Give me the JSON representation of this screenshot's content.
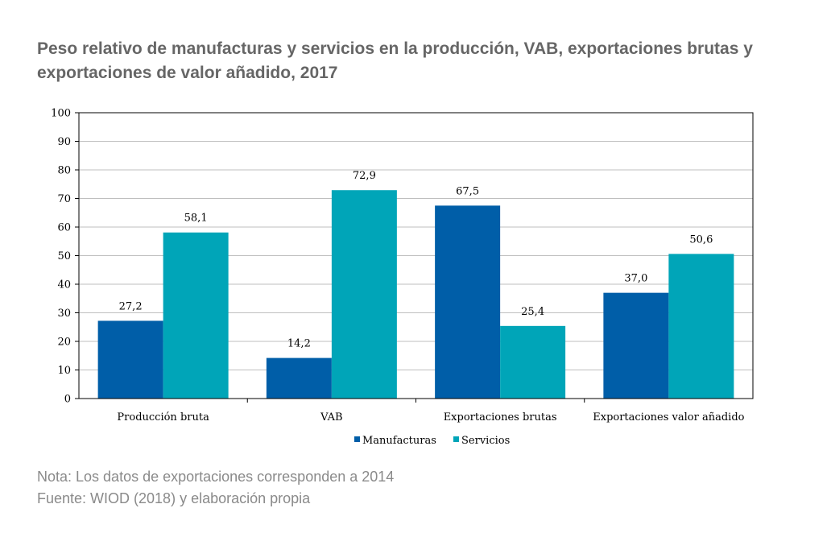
{
  "chart_data": {
    "type": "bar",
    "title": "Peso relativo de manufacturas y servicios en la producción, VAB, exportaciones brutas y exportaciones de valor añadido, 2017",
    "categories": [
      "Producción bruta",
      "VAB",
      "Exportaciones brutas",
      "Exportaciones valor añadido"
    ],
    "series": [
      {
        "name": "Manufacturas",
        "values": [
          27.2,
          14.2,
          67.5,
          37.0
        ],
        "labels": [
          "27,2",
          "14,2",
          "67,5",
          "37,0"
        ],
        "color": "#005ea8"
      },
      {
        "name": "Servicios",
        "values": [
          58.1,
          72.9,
          25.4,
          50.6
        ],
        "labels": [
          "58,1",
          "72,9",
          "25,4",
          "50,6"
        ],
        "color": "#00a5b8"
      }
    ],
    "ylim": [
      0,
      100
    ],
    "yticks": [
      0,
      10,
      20,
      30,
      40,
      50,
      60,
      70,
      80,
      90,
      100
    ],
    "grid": true,
    "legend": "bottom"
  },
  "notes": {
    "nota": "Nota: Los datos de exportaciones corresponden a 2014",
    "fuente": "Fuente: WIOD (2018) y elaboración propia"
  }
}
